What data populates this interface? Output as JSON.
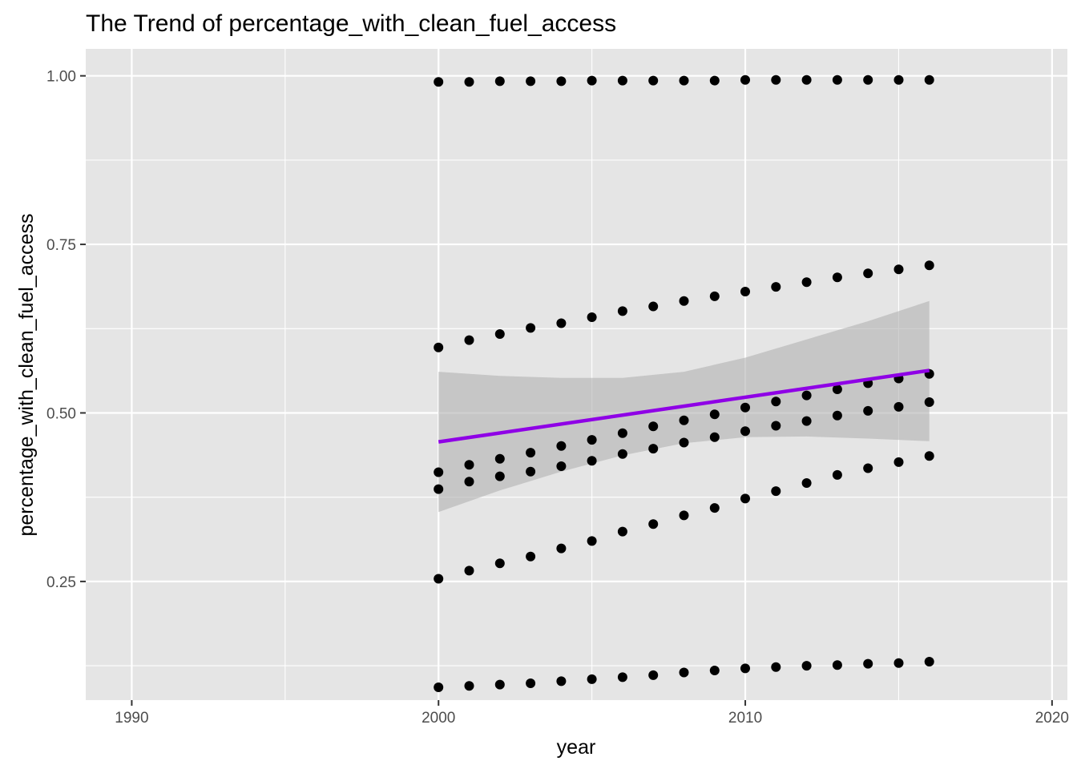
{
  "chart_data": {
    "type": "scatter",
    "title": "The Trend of percentage_with_clean_fuel_access",
    "xlabel": "year",
    "ylabel": "percentage_with_clean_fuel_access",
    "xlim": [
      1988.5,
      2020.5
    ],
    "ylim": [
      0.074,
      1.04
    ],
    "x_ticks": [
      1990,
      2000,
      2010,
      2020
    ],
    "y_ticks": [
      0.25,
      0.5,
      0.75,
      1.0
    ],
    "y_tick_labels": [
      "0.25",
      "0.50",
      "0.75",
      "1.00"
    ],
    "x_tick_labels": [
      "1990",
      "2000",
      "2010",
      "2020"
    ],
    "grid": true,
    "legend": "none",
    "colors": {
      "panel": "#e5e5e5",
      "grid": "#ffffff",
      "points": "#000000",
      "trend": "#8f00e6",
      "ribbon": "#b0b0b0"
    },
    "x": [
      2000,
      2001,
      2002,
      2003,
      2004,
      2005,
      2006,
      2007,
      2008,
      2009,
      2010,
      2011,
      2012,
      2013,
      2014,
      2015,
      2016
    ],
    "series": [
      {
        "values": [
          0.991,
          0.991,
          0.992,
          0.992,
          0.992,
          0.993,
          0.993,
          0.993,
          0.993,
          0.993,
          0.994,
          0.994,
          0.994,
          0.994,
          0.994,
          0.994,
          0.994
        ]
      },
      {
        "values": [
          0.597,
          0.608,
          0.617,
          0.626,
          0.633,
          0.642,
          0.651,
          0.658,
          0.666,
          0.673,
          0.68,
          0.687,
          0.694,
          0.701,
          0.707,
          0.713,
          0.719
        ]
      },
      {
        "values": [
          0.412,
          0.423,
          0.432,
          0.441,
          0.451,
          0.46,
          0.47,
          0.48,
          0.489,
          0.498,
          0.508,
          0.517,
          0.526,
          0.535,
          0.544,
          0.551,
          0.558
        ]
      },
      {
        "values": [
          0.387,
          0.398,
          0.406,
          0.413,
          0.421,
          0.429,
          0.439,
          0.447,
          0.456,
          0.464,
          0.473,
          0.481,
          0.488,
          0.496,
          0.503,
          0.509,
          0.516
        ]
      },
      {
        "values": [
          0.254,
          0.266,
          0.277,
          0.287,
          0.299,
          0.31,
          0.324,
          0.335,
          0.348,
          0.359,
          0.373,
          0.384,
          0.396,
          0.408,
          0.418,
          0.427,
          0.436
        ]
      },
      {
        "values": [
          0.093,
          0.095,
          0.097,
          0.099,
          0.102,
          0.105,
          0.108,
          0.111,
          0.115,
          0.118,
          0.121,
          0.123,
          0.125,
          0.126,
          0.128,
          0.129,
          0.131
        ]
      }
    ],
    "trend_line": {
      "x": [
        2000,
        2016
      ],
      "y": [
        0.457,
        0.563
      ]
    },
    "confidence_band": {
      "x": [
        2000,
        2002,
        2004,
        2006,
        2008,
        2010,
        2012,
        2014,
        2016
      ],
      "lower": [
        0.353,
        0.385,
        0.413,
        0.437,
        0.455,
        0.464,
        0.465,
        0.462,
        0.458
      ],
      "upper": [
        0.561,
        0.555,
        0.552,
        0.552,
        0.561,
        0.582,
        0.609,
        0.636,
        0.666
      ]
    }
  }
}
